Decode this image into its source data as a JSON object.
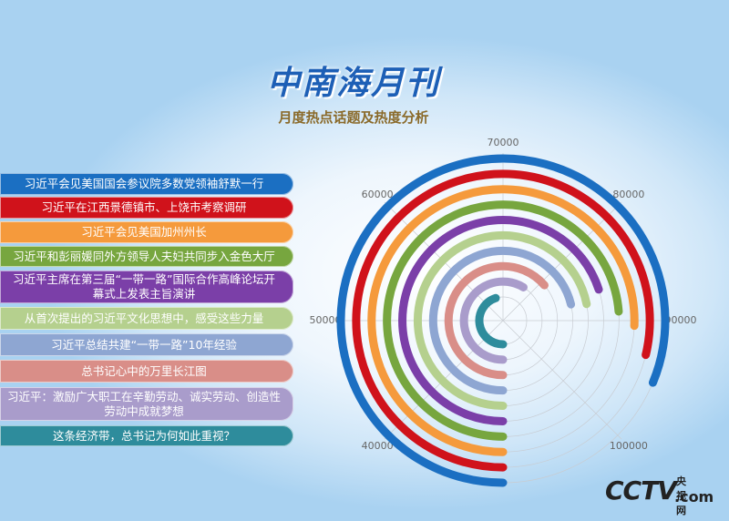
{
  "chart_data": {
    "type": "radial-bar",
    "title": "中南海月刊",
    "subtitle": "月度热点话题及热度分析",
    "categories": [
      "习近平会见美国国会参议院多数党领袖舒默一行",
      "习近平在江西景德镇市、上饶市考察调研",
      "习近平会见美国加州州长",
      "习近平和彭丽媛同外方领导人夫妇共同步入金色大厅",
      "习近平主席在第三届“一带一路”国际合作高峰论坛开幕式上发表主旨演讲",
      "从首次提出的习近平文化思想中，感受这些力量",
      "习近平总结共建“一带一路”10年经验",
      "总书记心中的万里长江图",
      "习近平：激励广大职工在辛勤劳动、诚实劳动、创造性劳动中成就梦想",
      "这条经济带，总书记为何如此重视？"
    ],
    "values": [
      95000,
      93000,
      90500,
      89000,
      86000,
      87500,
      87000,
      81000,
      77000,
      66000
    ],
    "colors": [
      "#1b6fc2",
      "#d0121b",
      "#f59a3c",
      "#77a63f",
      "#7b3fa8",
      "#b5d08e",
      "#8ea6d2",
      "#d98e88",
      "#a99ccb",
      "#2e8c9c"
    ],
    "ylim": [
      30000,
      110000
    ],
    "yticks": [
      40000,
      50000,
      60000,
      70000,
      80000,
      90000,
      100000
    ],
    "grid": true
  },
  "brand": {
    "logo": "CCTV",
    "domain": ".com",
    "name": "央视网"
  }
}
